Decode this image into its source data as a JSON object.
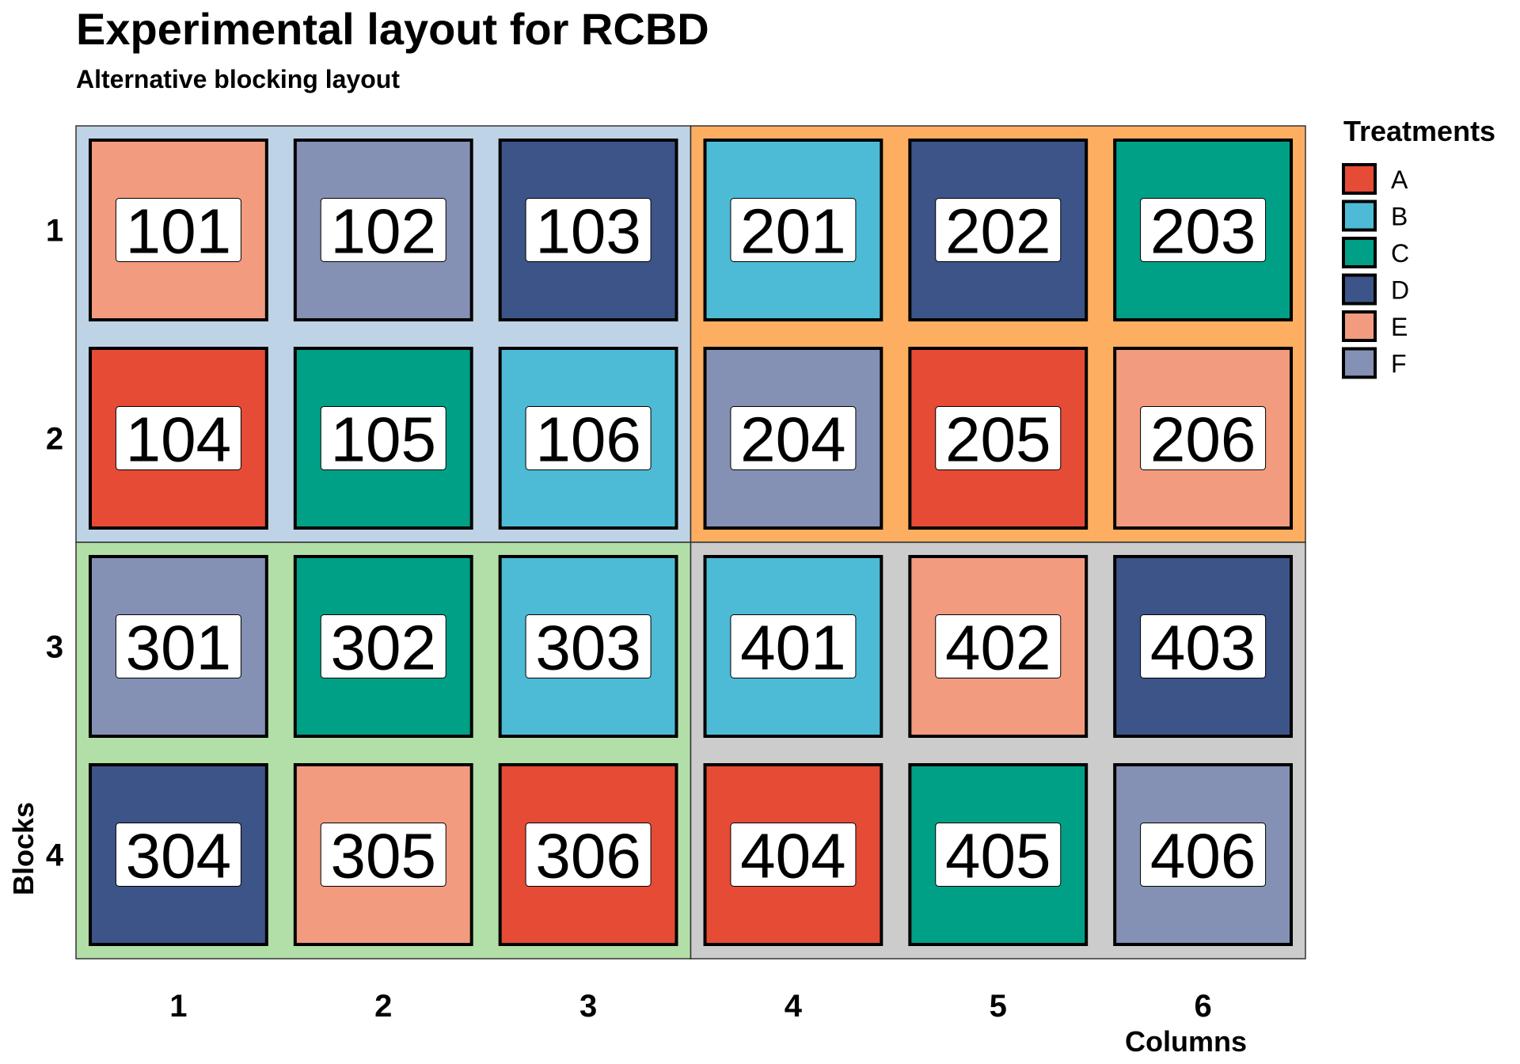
{
  "chart_data": {
    "type": "heatmap",
    "title": "Experimental layout for RCBD",
    "subtitle": "Alternative blocking layout",
    "xlabel": "Columns",
    "ylabel": "Blocks",
    "x_ticks": [
      "1",
      "2",
      "3",
      "4",
      "5",
      "6"
    ],
    "y_ticks": [
      "1",
      "2",
      "3",
      "4"
    ],
    "legend": {
      "title": "Treatments",
      "position": "right",
      "items": [
        {
          "label": "A",
          "color": "#E64B35"
        },
        {
          "label": "B",
          "color": "#4DBBD5"
        },
        {
          "label": "C",
          "color": "#00A087"
        },
        {
          "label": "D",
          "color": "#3C5488"
        },
        {
          "label": "E",
          "color": "#F39B7F"
        },
        {
          "label": "F",
          "color": "#8491B4"
        }
      ]
    },
    "blocks": [
      {
        "rows": [
          1,
          2
        ],
        "cols": [
          1,
          3
        ],
        "color": "#BFD3E6"
      },
      {
        "rows": [
          1,
          2
        ],
        "cols": [
          4,
          6
        ],
        "color": "#FDAE61"
      },
      {
        "rows": [
          3,
          4
        ],
        "cols": [
          1,
          3
        ],
        "color": "#B2DFA7"
      },
      {
        "rows": [
          3,
          4
        ],
        "cols": [
          4,
          6
        ],
        "color": "#CCCCCC"
      }
    ],
    "plots": [
      {
        "row": 1,
        "col": 1,
        "plot": "101",
        "treatment": "E"
      },
      {
        "row": 1,
        "col": 2,
        "plot": "102",
        "treatment": "F"
      },
      {
        "row": 1,
        "col": 3,
        "plot": "103",
        "treatment": "D"
      },
      {
        "row": 1,
        "col": 4,
        "plot": "201",
        "treatment": "B"
      },
      {
        "row": 1,
        "col": 5,
        "plot": "202",
        "treatment": "D"
      },
      {
        "row": 1,
        "col": 6,
        "plot": "203",
        "treatment": "C"
      },
      {
        "row": 2,
        "col": 1,
        "plot": "104",
        "treatment": "A"
      },
      {
        "row": 2,
        "col": 2,
        "plot": "105",
        "treatment": "C"
      },
      {
        "row": 2,
        "col": 3,
        "plot": "106",
        "treatment": "B"
      },
      {
        "row": 2,
        "col": 4,
        "plot": "204",
        "treatment": "F"
      },
      {
        "row": 2,
        "col": 5,
        "plot": "205",
        "treatment": "A"
      },
      {
        "row": 2,
        "col": 6,
        "plot": "206",
        "treatment": "E"
      },
      {
        "row": 3,
        "col": 1,
        "plot": "301",
        "treatment": "F"
      },
      {
        "row": 3,
        "col": 2,
        "plot": "302",
        "treatment": "C"
      },
      {
        "row": 3,
        "col": 3,
        "plot": "303",
        "treatment": "B"
      },
      {
        "row": 3,
        "col": 4,
        "plot": "401",
        "treatment": "B"
      },
      {
        "row": 3,
        "col": 5,
        "plot": "402",
        "treatment": "E"
      },
      {
        "row": 3,
        "col": 6,
        "plot": "403",
        "treatment": "D"
      },
      {
        "row": 4,
        "col": 1,
        "plot": "304",
        "treatment": "D"
      },
      {
        "row": 4,
        "col": 2,
        "plot": "305",
        "treatment": "E"
      },
      {
        "row": 4,
        "col": 3,
        "plot": "306",
        "treatment": "A"
      },
      {
        "row": 4,
        "col": 4,
        "plot": "404",
        "treatment": "A"
      },
      {
        "row": 4,
        "col": 5,
        "plot": "405",
        "treatment": "C"
      },
      {
        "row": 4,
        "col": 6,
        "plot": "406",
        "treatment": "F"
      }
    ]
  }
}
